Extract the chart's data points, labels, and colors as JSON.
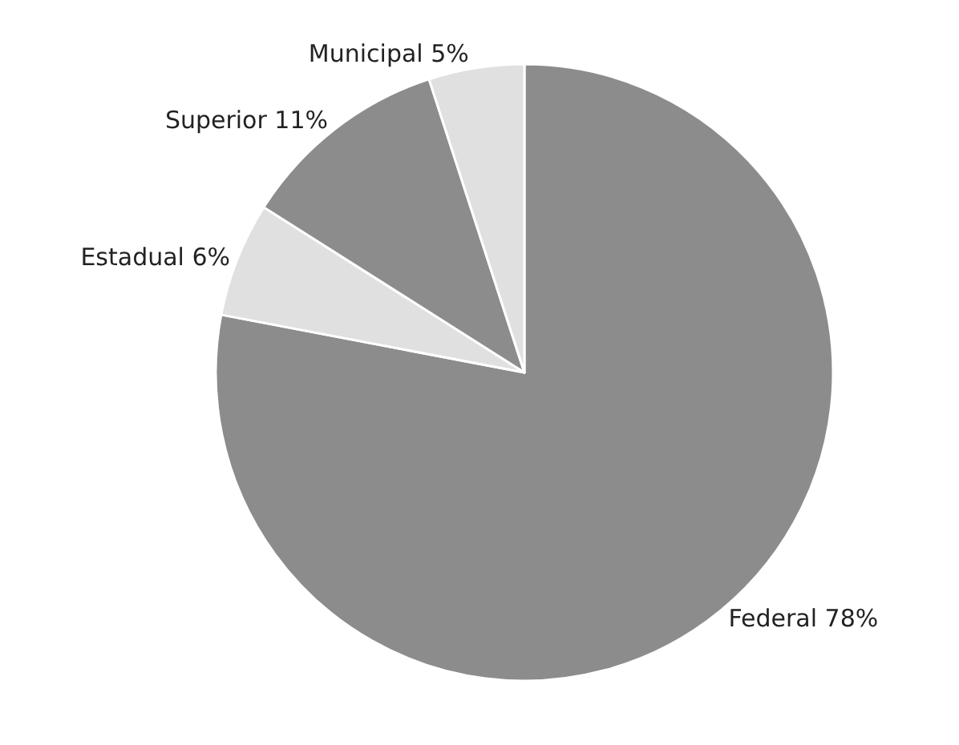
{
  "chart_data": {
    "type": "pie",
    "categories": [
      "Federal",
      "Estadual",
      "Superior",
      "Municipal"
    ],
    "values": [
      78,
      6,
      11,
      5
    ],
    "value_labels": [
      "78%",
      "6%",
      "11%",
      "5%"
    ],
    "colors": [
      "#8c8c8c",
      "#e0e0e0",
      "#8c8c8c",
      "#e0e0e0"
    ],
    "legend": false
  }
}
